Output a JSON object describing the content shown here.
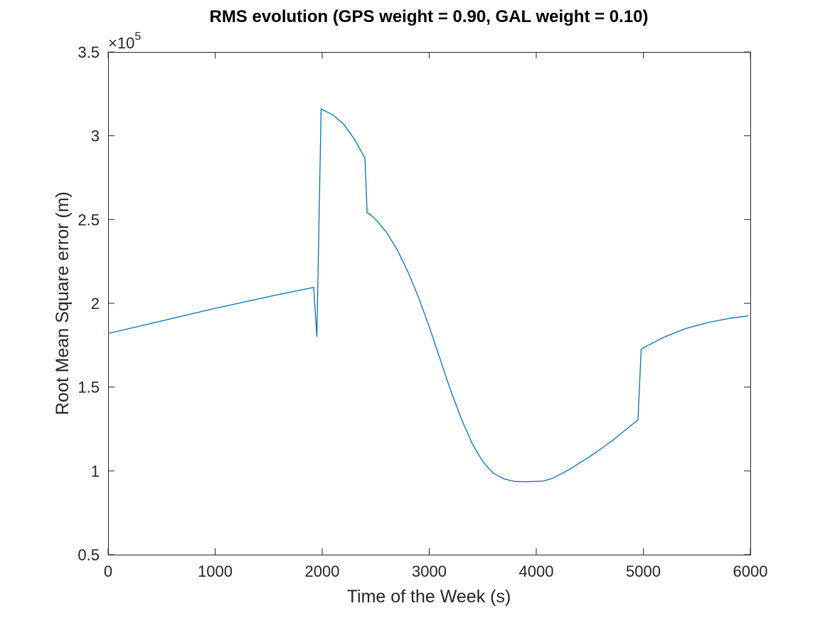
{
  "chart_data": {
    "type": "line",
    "title": "RMS evolution (GPS weight = 0.90, GAL weight = 0.10)",
    "xlabel": "Time of the Week (s)",
    "ylabel": "Root Mean Square error (m)",
    "xlim": [
      0,
      6000
    ],
    "ylim": [
      50000,
      350000
    ],
    "y_exponent_label": "×10",
    "y_exponent_power": "5",
    "x_ticks": [
      0,
      1000,
      2000,
      3000,
      4000,
      5000,
      6000
    ],
    "x_tick_labels": [
      "0",
      "1000",
      "2000",
      "3000",
      "4000",
      "5000",
      "6000"
    ],
    "y_ticks": [
      50000,
      100000,
      150000,
      200000,
      250000,
      300000,
      350000
    ],
    "y_tick_labels": [
      "0.5",
      "1",
      "1.5",
      "2",
      "2.5",
      "3",
      "3.5"
    ],
    "grid": false,
    "series": [
      {
        "color": "#0072BD",
        "x": [
          0,
          500,
          1000,
          1500,
          1920,
          1950,
          1990,
          2100,
          2200,
          2300,
          2400,
          2420,
          2440,
          2500,
          2600,
          2700,
          2800,
          2900,
          3000,
          3100,
          3200,
          3300,
          3400,
          3500,
          3600,
          3700,
          3800,
          3900,
          4000,
          4070,
          4150,
          4300,
          4500,
          4700,
          4950,
          4980,
          5000,
          5200,
          5400,
          5600,
          5800,
          5980
        ],
        "y": [
          182000,
          189500,
          197000,
          204000,
          209500,
          180000,
          316000,
          312500,
          307000,
          298000,
          286500,
          254000,
          253500,
          250000,
          242500,
          232000,
          219000,
          203500,
          186000,
          167000,
          148000,
          131000,
          116500,
          105500,
          98500,
          95200,
          93700,
          93500,
          93700,
          94000,
          95500,
          100500,
          108500,
          117500,
          130500,
          172500,
          173500,
          180000,
          185000,
          188500,
          191000,
          192500
        ]
      }
    ]
  }
}
